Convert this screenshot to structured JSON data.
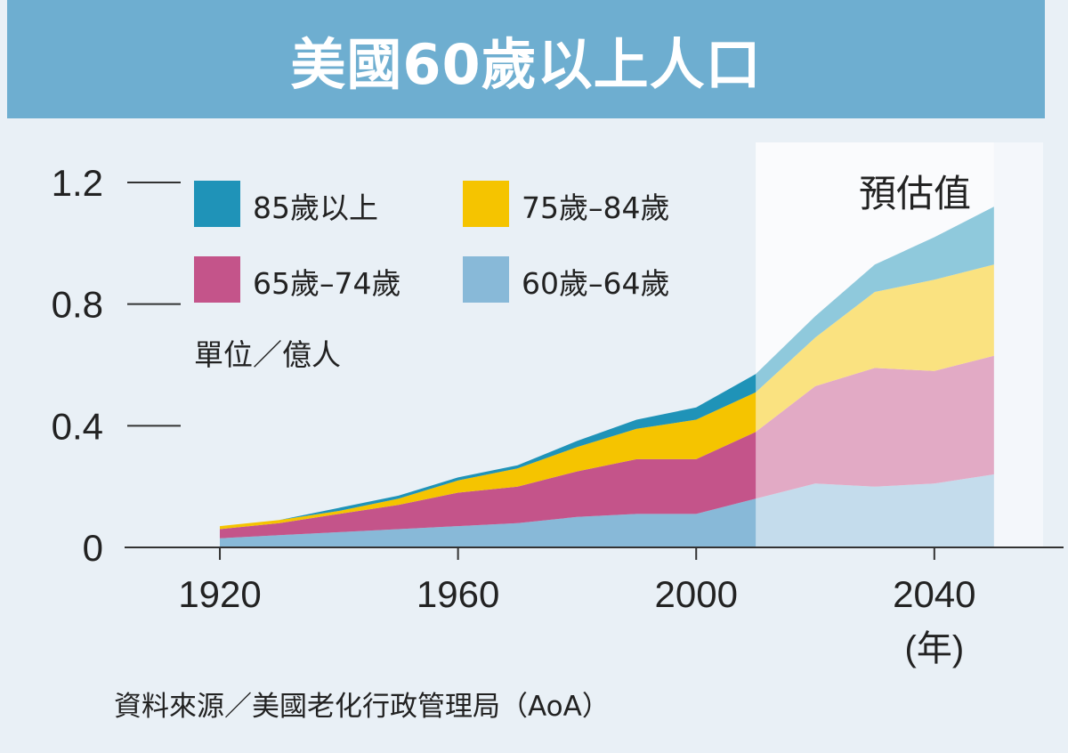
{
  "title": "美國60歲以上人口",
  "source": "資料來源／美國老化行政管理局（AoA）",
  "unit_label": "單位／億人",
  "projection_label": "預估值",
  "x_unit": "(年)",
  "colors": {
    "title_bg": "#6eaed0",
    "page_bg": "#e9f0f6",
    "projection_bg": "#f4f7fb",
    "s85plus": "#1f93b8",
    "s75_84": "#f5c400",
    "s65_74": "#c4548a",
    "s60_64": "#88b9d8"
  },
  "chart_data": {
    "type": "area",
    "stacked": true,
    "title": "美國60歲以上人口",
    "ylabel": "單位／億人",
    "xlabel": "(年)",
    "x": [
      1920,
      1930,
      1940,
      1950,
      1960,
      1970,
      1980,
      1990,
      2000,
      2010,
      2020,
      2030,
      2040,
      2050
    ],
    "projection_start": 2010,
    "ylim": [
      0,
      1.2
    ],
    "xlim": [
      1904,
      2062
    ],
    "y_ticks": [
      "0",
      "0.4",
      "0.8",
      "1.2"
    ],
    "y_tick_values": [
      0,
      0.4,
      0.8,
      1.2
    ],
    "x_ticks": [
      "1920",
      "1960",
      "2000",
      "2040"
    ],
    "x_tick_values": [
      1920,
      1960,
      2000,
      2040
    ],
    "series": [
      {
        "name": "60歲–64歲",
        "key": "s60_64",
        "values": [
          0.03,
          0.04,
          0.05,
          0.06,
          0.07,
          0.08,
          0.1,
          0.11,
          0.11,
          0.16,
          0.21,
          0.2,
          0.21,
          0.24
        ]
      },
      {
        "name": "65歲–74歲",
        "key": "s65_74",
        "values": [
          0.03,
          0.04,
          0.06,
          0.08,
          0.11,
          0.12,
          0.15,
          0.18,
          0.18,
          0.22,
          0.32,
          0.39,
          0.37,
          0.39
        ]
      },
      {
        "name": "75歲–84歲",
        "key": "s75_84",
        "values": [
          0.01,
          0.01,
          0.01,
          0.02,
          0.04,
          0.06,
          0.08,
          0.1,
          0.13,
          0.13,
          0.16,
          0.25,
          0.3,
          0.3
        ]
      },
      {
        "name": "85歲以上",
        "key": "s85plus",
        "values": [
          0.0,
          0.0,
          0.01,
          0.01,
          0.01,
          0.01,
          0.02,
          0.03,
          0.04,
          0.06,
          0.07,
          0.09,
          0.14,
          0.19
        ]
      }
    ],
    "legend": [
      {
        "name": "85歲以上",
        "key": "s85plus"
      },
      {
        "name": "75歲–84歲",
        "key": "s75_84"
      },
      {
        "name": "65歲–74歲",
        "key": "s65_74"
      },
      {
        "name": "60歲–64歲",
        "key": "s60_64"
      }
    ]
  }
}
